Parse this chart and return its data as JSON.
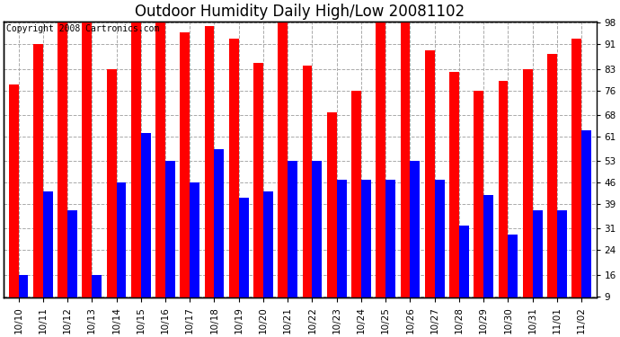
{
  "title": "Outdoor Humidity Daily High/Low 20081102",
  "copyright": "Copyright 2008 Cartronics.com",
  "categories": [
    "10/10",
    "10/11",
    "10/12",
    "10/13",
    "10/14",
    "10/15",
    "10/16",
    "10/17",
    "10/18",
    "10/19",
    "10/20",
    "10/21",
    "10/22",
    "10/23",
    "10/24",
    "10/25",
    "10/26",
    "10/27",
    "10/28",
    "10/29",
    "10/30",
    "10/31",
    "11/01",
    "11/02"
  ],
  "highs": [
    78,
    91,
    98,
    98,
    83,
    98,
    98,
    95,
    97,
    93,
    85,
    98,
    84,
    69,
    76,
    98,
    98,
    89,
    82,
    76,
    79,
    83,
    88,
    93
  ],
  "lows": [
    16,
    43,
    37,
    16,
    46,
    62,
    53,
    46,
    57,
    41,
    43,
    53,
    53,
    47,
    47,
    47,
    53,
    47,
    32,
    42,
    29,
    37,
    37,
    63
  ],
  "bar_color_high": "#ff0000",
  "bar_color_low": "#0000ff",
  "background_color": "#ffffff",
  "plot_bg_color": "#ffffff",
  "grid_color": "#aaaaaa",
  "yticks": [
    9,
    16,
    24,
    31,
    39,
    46,
    53,
    61,
    68,
    76,
    83,
    91,
    98
  ],
  "ymin": 9,
  "ymax": 98,
  "title_fontsize": 12,
  "copyright_fontsize": 7,
  "tick_fontsize": 7.5,
  "bar_width": 0.4,
  "fig_width": 6.9,
  "fig_height": 3.75,
  "dpi": 100
}
